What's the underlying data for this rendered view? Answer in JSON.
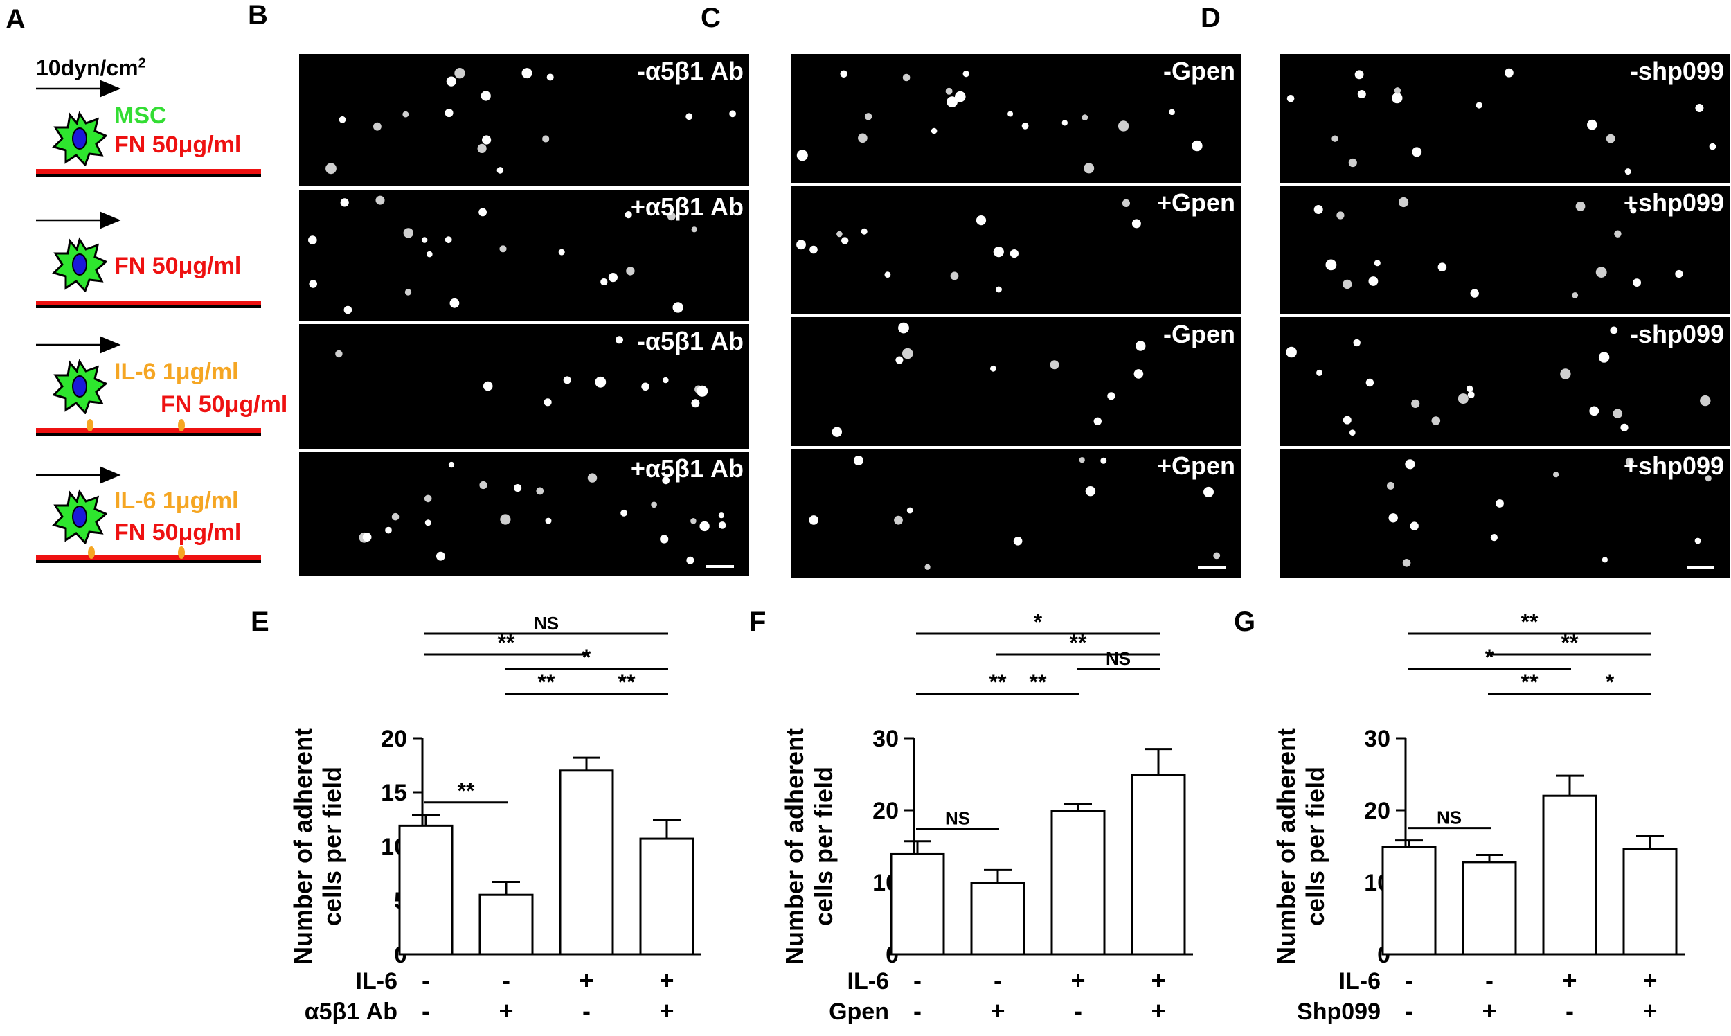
{
  "panels": {
    "A": "A",
    "B": "B",
    "C": "C",
    "D": "D",
    "E": "E",
    "F": "F",
    "G": "G"
  },
  "schematic": {
    "shear": "10dyn/cm",
    "shear_sup": "2",
    "rows": [
      {
        "lines": [
          {
            "text": "MSC",
            "color": "#33dd33"
          },
          {
            "text": "FN 50μg/ml",
            "color": "#ee1111"
          }
        ],
        "il6": false
      },
      {
        "lines": [
          {
            "text": "FN 50μg/ml",
            "color": "#ee1111"
          }
        ],
        "il6": false
      },
      {
        "lines": [
          {
            "text": "IL-6 1μg/ml",
            "color": "#f5a623"
          },
          {
            "text": "FN 50μg/ml",
            "color": "#ee1111"
          }
        ],
        "il6": true
      },
      {
        "lines": [
          {
            "text": "IL-6 1μg/ml",
            "color": "#f5a623"
          },
          {
            "text": "FN 50μg/ml",
            "color": "#ee1111"
          }
        ],
        "il6": true
      }
    ]
  },
  "micrographs": {
    "B": [
      "-α5β1 Ab",
      "+α5β1 Ab",
      "-α5β1 Ab",
      "+α5β1 Ab"
    ],
    "C": [
      "-Gpen",
      "+Gpen",
      "-Gpen",
      "+Gpen"
    ],
    "D": [
      "-shp099",
      "+shp099",
      "-shp099",
      "+shp099"
    ]
  },
  "chart_data": [
    {
      "type": "bar",
      "panel": "E",
      "ylabel": "Number of adherent cells per field",
      "ylim": [
        0,
        20
      ],
      "yticks": [
        0,
        5,
        10,
        15,
        20
      ],
      "values": [
        11.9,
        5.5,
        17.0,
        10.7
      ],
      "errors": [
        1.0,
        1.2,
        1.2,
        1.7
      ],
      "conditions": [
        {
          "label": "IL-6",
          "values": [
            "-",
            "-",
            "+",
            "+"
          ]
        },
        {
          "label": "α5β1 Ab",
          "values": [
            "-",
            "+",
            "-",
            "+"
          ]
        }
      ],
      "significance": [
        {
          "from": 0,
          "to": 3,
          "label": "NS"
        },
        {
          "from": 0,
          "to": 2,
          "label": "**"
        },
        {
          "from": 1,
          "to": 3,
          "label": "*"
        },
        {
          "from": 1,
          "to": 2,
          "label": "**"
        },
        {
          "from": 2,
          "to": 3,
          "label": "**"
        },
        {
          "from": 0,
          "to": 1,
          "label": "**"
        }
      ]
    },
    {
      "type": "bar",
      "panel": "F",
      "ylabel": "Number of adherent cells per field",
      "ylim": [
        0,
        30
      ],
      "yticks": [
        0,
        10,
        20,
        30
      ],
      "values": [
        13.9,
        9.9,
        19.9,
        24.9
      ],
      "errors": [
        1.8,
        1.8,
        1.0,
        3.6
      ],
      "conditions": [
        {
          "label": "IL-6",
          "values": [
            "-",
            "-",
            "+",
            "+"
          ]
        },
        {
          "label": "Gpen",
          "values": [
            "-",
            "+",
            "-",
            "+"
          ]
        }
      ],
      "significance": [
        {
          "from": 0,
          "to": 3,
          "label": "*"
        },
        {
          "from": 1,
          "to": 3,
          "label": "**"
        },
        {
          "from": 2,
          "to": 3,
          "label": "NS"
        },
        {
          "from": 0,
          "to": 2,
          "label": "**"
        },
        {
          "from": 1,
          "to": 2,
          "label": "**"
        },
        {
          "from": 0,
          "to": 1,
          "label": "NS"
        }
      ]
    },
    {
      "type": "bar",
      "panel": "G",
      "ylabel": "Number of adherent cells per field",
      "ylim": [
        0,
        30
      ],
      "yticks": [
        0,
        10,
        20,
        30
      ],
      "values": [
        14.9,
        12.8,
        22.0,
        14.6
      ],
      "errors": [
        0.9,
        1.0,
        2.8,
        1.8
      ],
      "conditions": [
        {
          "label": "IL-6",
          "values": [
            "-",
            "-",
            "+",
            "+"
          ]
        },
        {
          "label": "Shp099",
          "values": [
            "-",
            "+",
            "-",
            "+"
          ]
        }
      ],
      "significance": [
        {
          "from": 0,
          "to": 3,
          "label": "**"
        },
        {
          "from": 1,
          "to": 3,
          "label": "**"
        },
        {
          "from": 0,
          "to": 2,
          "label": "*"
        },
        {
          "from": 1,
          "to": 2,
          "label": "**"
        },
        {
          "from": 2,
          "to": 3,
          "label": "*"
        },
        {
          "from": 0,
          "to": 1,
          "label": "NS"
        }
      ]
    }
  ]
}
